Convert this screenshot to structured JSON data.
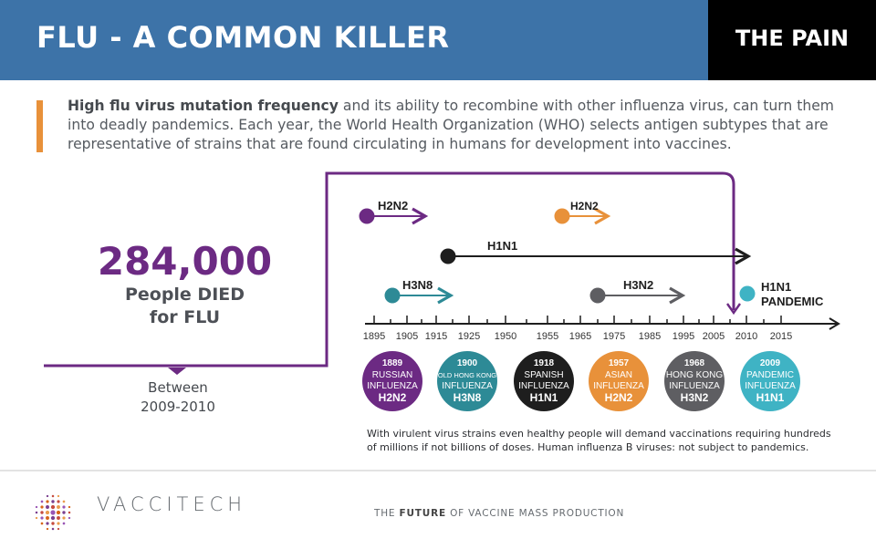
{
  "header": {
    "title": "FLU - A COMMON KILLER",
    "section": "THE PAIN"
  },
  "intro": {
    "bold": "High flu virus mutation frequency",
    "rest": " and its ability to recombine with other influenza virus, can turn them into deadly pandemics. Each year, the World Health Organization (WHO) selects antigen subtypes that are representative of strains that are found circulating in humans for development into vaccines."
  },
  "stat": {
    "value": "284,000",
    "line1": "People DIED",
    "line2": "for FLU",
    "between_label": "Between",
    "between_range": "2009-2010"
  },
  "timeline": {
    "axis_ticks": [
      "1895",
      "1905",
      "1915",
      "1925",
      "1950",
      "1955",
      "1965",
      "1975",
      "1985",
      "1995",
      "2005",
      "2010",
      "2015"
    ],
    "strains": [
      {
        "label": "H2N2",
        "color": "#6c2a83"
      },
      {
        "label": "H2N2",
        "color": "#e8913a"
      },
      {
        "label": "H1N1",
        "color": "#1e1e1e"
      },
      {
        "label": "H3N8",
        "color": "#2d8a96"
      },
      {
        "label": "H3N2",
        "color": "#5e5e62"
      },
      {
        "label_line1": "H1N1",
        "label_line2": "PANDEMIC",
        "color": "#3fb3c4"
      }
    ],
    "pandemics": [
      {
        "year": "1889",
        "line1": "RUSSIAN",
        "line2": "INFLUENZA",
        "subtype": "H2N2",
        "color": "#6c2a83"
      },
      {
        "year": "1900",
        "line1": "OLD HONG KONG",
        "line2": "INFLUENZA",
        "subtype": "H3N8",
        "color": "#2d8a96"
      },
      {
        "year": "1918",
        "line1": "SPANISH",
        "line2": "INFLUENZA",
        "subtype": "H1N1",
        "color": "#1e1e1e"
      },
      {
        "year": "1957",
        "line1": "ASIAN",
        "line2": "INFLUENZA",
        "subtype": "H2N2",
        "color": "#e8913a"
      },
      {
        "year": "1968",
        "line1": "HONG KONG",
        "line2": "INFLUENZA",
        "subtype": "H3N2",
        "color": "#5e5e62"
      },
      {
        "year": "2009",
        "line1": "PANDEMIC",
        "line2": "INFLUENZA",
        "subtype": "H1N1",
        "color": "#3fb3c4"
      }
    ]
  },
  "note": "With virulent virus strains even healthy people will demand vaccinations requiring hundreds of millions if not billions of doses. Human influenza B viruses: not subject to pandemics.",
  "footer": {
    "brand": "VACCITECH",
    "tagline_pre": "THE ",
    "tagline_bold": "FUTURE",
    "tagline_post": " OF VACCINE MASS PRODUCTION"
  },
  "colors": {
    "header_blue": "#3d73a8",
    "purple": "#6c2a83",
    "orange": "#e8913a",
    "teal": "#2d8a96",
    "light_teal": "#3fb3c4",
    "gray": "#5e5e62"
  }
}
